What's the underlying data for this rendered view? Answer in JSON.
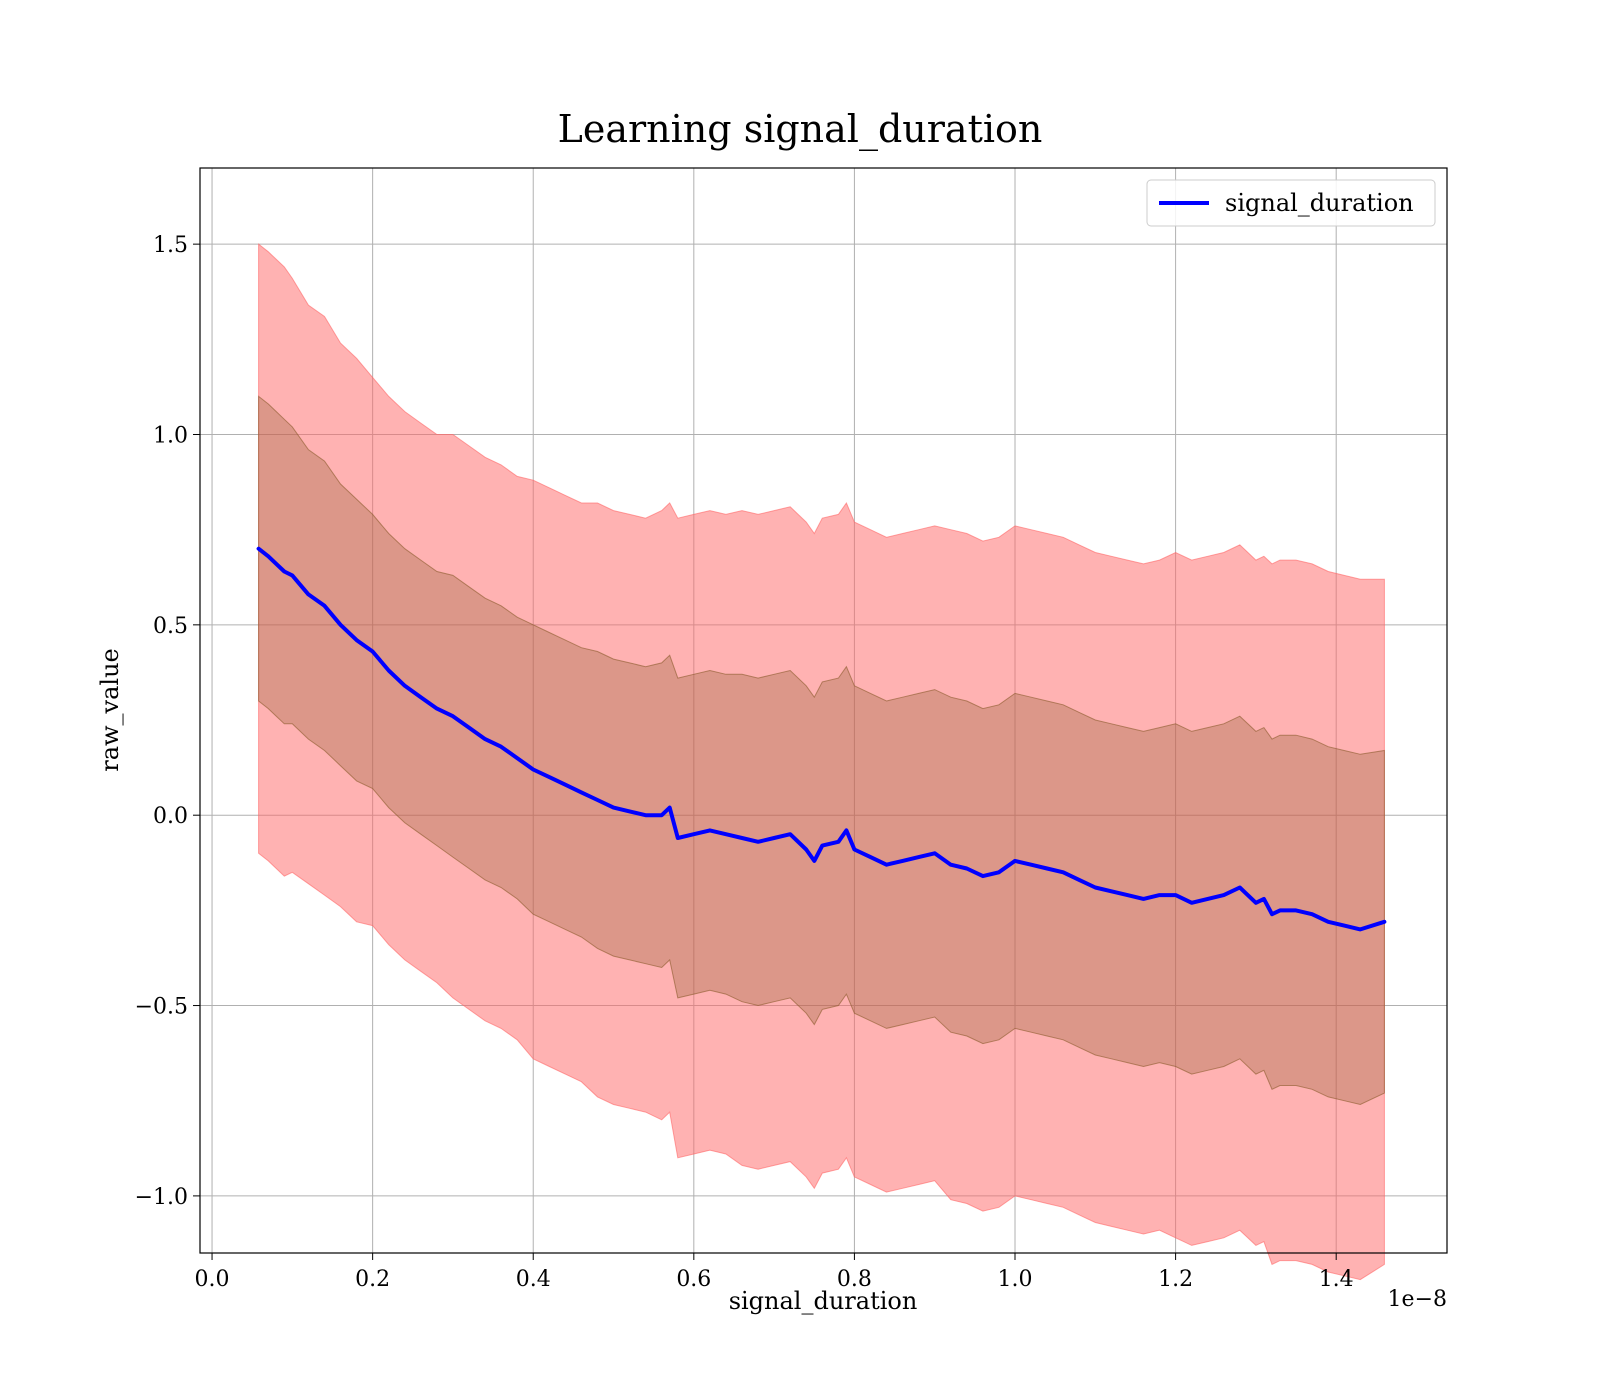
{
  "chart_data": {
    "type": "line",
    "title": "Learning signal_duration",
    "xlabel": "signal_duration",
    "ylabel": "raw_value",
    "x_offset_label": "1e−8",
    "xlim": [
      -0.015,
      1.538
    ],
    "ylim": [
      -1.15,
      1.7
    ],
    "x_ticks": [
      0.0,
      0.2,
      0.4,
      0.6,
      0.8,
      1.0,
      1.2,
      1.4
    ],
    "x_tick_labels": [
      "0.0",
      "0.2",
      "0.4",
      "0.6",
      "0.8",
      "1.0",
      "1.2",
      "1.4"
    ],
    "y_ticks": [
      -1.0,
      -0.5,
      0.0,
      0.5,
      1.0,
      1.5
    ],
    "y_tick_labels": [
      "−1.0",
      "−0.5",
      "0.0",
      "0.5",
      "1.0",
      "1.5"
    ],
    "grid": true,
    "legend_position": "top-right",
    "series": [
      {
        "name": "signal_duration",
        "color": "#0000ff",
        "x": [
          0.058,
          0.07,
          0.08,
          0.09,
          0.1,
          0.12,
          0.14,
          0.16,
          0.18,
          0.2,
          0.22,
          0.24,
          0.26,
          0.28,
          0.3,
          0.32,
          0.34,
          0.36,
          0.38,
          0.4,
          0.42,
          0.44,
          0.46,
          0.48,
          0.5,
          0.52,
          0.54,
          0.56,
          0.57,
          0.58,
          0.6,
          0.62,
          0.64,
          0.66,
          0.68,
          0.7,
          0.72,
          0.74,
          0.75,
          0.76,
          0.78,
          0.79,
          0.8,
          0.82,
          0.84,
          0.86,
          0.88,
          0.9,
          0.92,
          0.94,
          0.96,
          0.98,
          1.0,
          1.02,
          1.04,
          1.06,
          1.08,
          1.1,
          1.12,
          1.14,
          1.16,
          1.18,
          1.2,
          1.22,
          1.24,
          1.26,
          1.28,
          1.3,
          1.31,
          1.32,
          1.33,
          1.35,
          1.37,
          1.39,
          1.41,
          1.43,
          1.46
        ],
        "mean": [
          0.7,
          0.68,
          0.66,
          0.64,
          0.63,
          0.58,
          0.55,
          0.5,
          0.46,
          0.43,
          0.38,
          0.34,
          0.31,
          0.28,
          0.26,
          0.23,
          0.2,
          0.18,
          0.15,
          0.12,
          0.1,
          0.08,
          0.06,
          0.04,
          0.02,
          0.01,
          0.0,
          0.0,
          0.02,
          -0.06,
          -0.05,
          -0.04,
          -0.05,
          -0.06,
          -0.07,
          -0.06,
          -0.05,
          -0.09,
          -0.12,
          -0.08,
          -0.07,
          -0.04,
          -0.09,
          -0.11,
          -0.13,
          -0.12,
          -0.11,
          -0.1,
          -0.13,
          -0.14,
          -0.16,
          -0.15,
          -0.12,
          -0.13,
          -0.14,
          -0.15,
          -0.17,
          -0.19,
          -0.2,
          -0.21,
          -0.22,
          -0.21,
          -0.21,
          -0.23,
          -0.22,
          -0.21,
          -0.19,
          -0.23,
          -0.22,
          -0.26,
          -0.25,
          -0.25,
          -0.26,
          -0.28,
          -0.29,
          -0.3,
          -0.28
        ],
        "std": [
          0.4,
          0.4,
          0.4,
          0.4,
          0.39,
          0.38,
          0.38,
          0.37,
          0.37,
          0.36,
          0.36,
          0.36,
          0.36,
          0.36,
          0.37,
          0.37,
          0.37,
          0.37,
          0.37,
          0.38,
          0.38,
          0.38,
          0.38,
          0.39,
          0.39,
          0.39,
          0.39,
          0.4,
          0.4,
          0.42,
          0.42,
          0.42,
          0.42,
          0.43,
          0.43,
          0.43,
          0.43,
          0.43,
          0.43,
          0.43,
          0.43,
          0.43,
          0.43,
          0.43,
          0.43,
          0.43,
          0.43,
          0.43,
          0.44,
          0.44,
          0.44,
          0.44,
          0.44,
          0.44,
          0.44,
          0.44,
          0.44,
          0.44,
          0.44,
          0.44,
          0.44,
          0.44,
          0.45,
          0.45,
          0.45,
          0.45,
          0.45,
          0.45,
          0.45,
          0.46,
          0.46,
          0.46,
          0.46,
          0.46,
          0.46,
          0.46,
          0.45
        ]
      }
    ],
    "bands": [
      {
        "label_multiplier": 2,
        "fill": "#ff6666",
        "opacity": 0.5
      },
      {
        "label_multiplier": 1,
        "fill": "#8b5a2b",
        "opacity": 0.3
      }
    ]
  }
}
